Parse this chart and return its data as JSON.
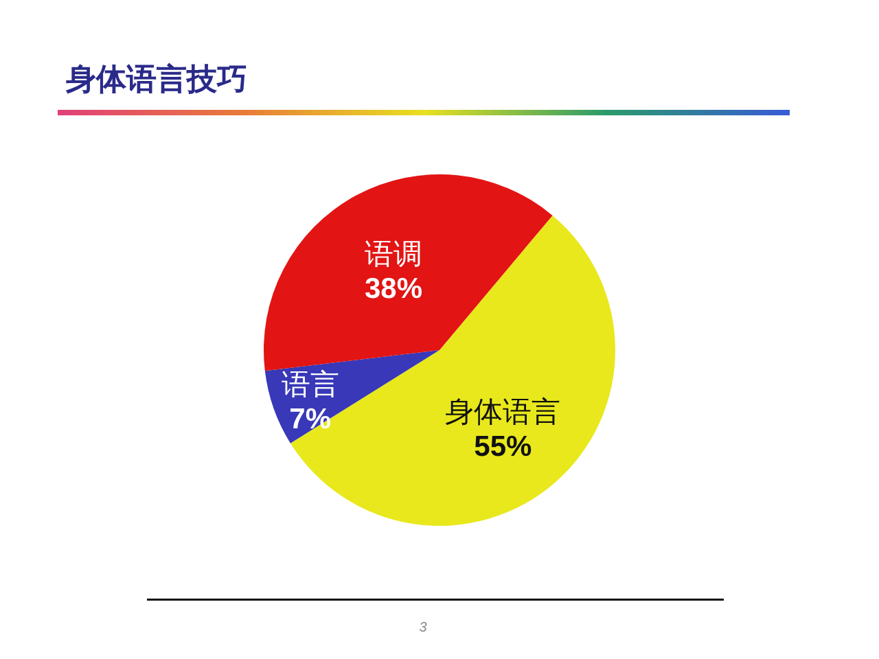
{
  "chart_data": {
    "type": "pie",
    "title": "身体语言技巧",
    "categories": [
      "身体语言",
      "语言",
      "语调"
    ],
    "values": [
      55,
      7,
      38
    ],
    "colors": [
      "#e8e81c",
      "#3838b8",
      "#e21414"
    ],
    "value_labels": [
      "55%",
      "7%",
      "38%"
    ],
    "annotations": [
      "3"
    ]
  }
}
